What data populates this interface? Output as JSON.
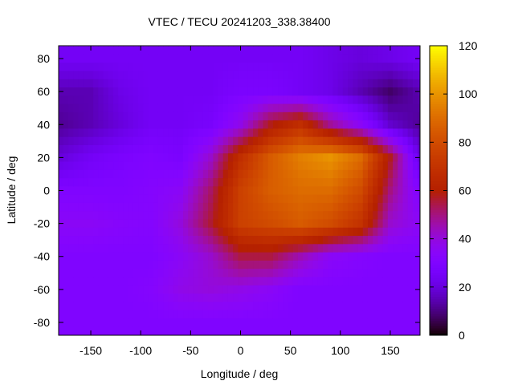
{
  "chart_data": {
    "type": "heatmap",
    "title": "VTEC / TECU 20241203_338.38400",
    "xlabel": "Longitude / deg",
    "ylabel": "Latitude / deg",
    "xlim": [
      -182.5,
      180
    ],
    "ylim": [
      -87.5,
      87.5
    ],
    "xticks": [
      -150,
      -100,
      -50,
      0,
      50,
      100,
      150
    ],
    "yticks": [
      -80,
      -60,
      -40,
      -20,
      0,
      20,
      40,
      60,
      80
    ],
    "colorbar": {
      "range": [
        0,
        120
      ],
      "ticks": [
        0,
        20,
        40,
        60,
        80,
        100,
        120
      ],
      "palette": "black-purple-red-orange-yellow"
    },
    "grid_lon": [
      -180,
      -150,
      -120,
      -90,
      -60,
      -30,
      0,
      30,
      60,
      90,
      120,
      150,
      180
    ],
    "grid_lat": [
      80,
      60,
      40,
      20,
      0,
      -20,
      -40,
      -60,
      -80
    ],
    "values": [
      [
        25,
        25,
        25,
        25,
        25,
        25,
        25,
        25,
        25,
        22,
        20,
        22,
        25
      ],
      [
        15,
        15,
        22,
        25,
        25,
        25,
        28,
        28,
        25,
        22,
        15,
        8,
        15
      ],
      [
        12,
        15,
        20,
        25,
        25,
        27,
        38,
        58,
        68,
        48,
        35,
        18,
        12
      ],
      [
        20,
        25,
        28,
        30,
        28,
        42,
        68,
        85,
        95,
        100,
        90,
        58,
        20
      ],
      [
        30,
        30,
        30,
        32,
        35,
        52,
        76,
        86,
        90,
        90,
        80,
        50,
        30
      ],
      [
        35,
        35,
        33,
        32,
        40,
        56,
        76,
        80,
        85,
        80,
        70,
        42,
        35
      ],
      [
        30,
        30,
        30,
        30,
        35,
        42,
        55,
        55,
        45,
        35,
        32,
        30,
        30
      ],
      [
        30,
        30,
        30,
        32,
        38,
        40,
        38,
        35,
        30,
        30,
        30,
        30,
        30
      ],
      [
        30,
        30,
        30,
        30,
        30,
        30,
        30,
        30,
        30,
        30,
        30,
        30,
        30
      ]
    ],
    "grid": false
  }
}
